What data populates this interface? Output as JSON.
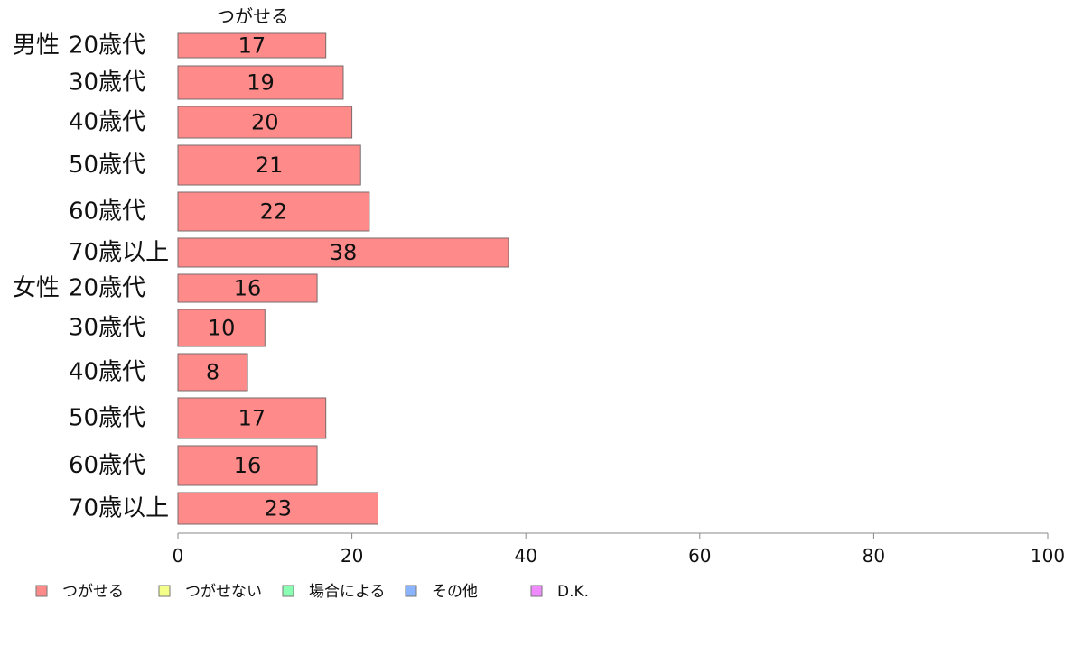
{
  "chart_data": {
    "type": "bar",
    "orientation": "horizontal",
    "stacked": true,
    "series_title": "つがせる",
    "groups": [
      {
        "label": "男性",
        "start": 0
      },
      {
        "label": "女性",
        "start": 6
      }
    ],
    "categories": [
      "20歳代",
      "30歳代",
      "40歳代",
      "50歳代",
      "60歳代",
      "70歳以上",
      "20歳代",
      "30歳代",
      "40歳代",
      "50歳代",
      "60歳代",
      "70歳以上"
    ],
    "series": [
      {
        "name": "つがせる",
        "color": "#ff8a8a",
        "values": [
          17,
          19,
          20,
          21,
          22,
          38,
          16,
          10,
          8,
          17,
          16,
          23
        ]
      }
    ],
    "legend": [
      {
        "label": "つがせる",
        "color": "#ff8a8a"
      },
      {
        "label": "つがせない",
        "color": "#f4ff8a"
      },
      {
        "label": "場合による",
        "color": "#8affb4"
      },
      {
        "label": "その他",
        "color": "#8ab4ff"
      },
      {
        "label": "D.K.",
        "color": "#f08aff"
      }
    ],
    "legend_position": "bottom-left",
    "xlim": [
      0,
      100
    ],
    "xticks": [
      0,
      20,
      40,
      60,
      80,
      100
    ],
    "grid": false
  }
}
